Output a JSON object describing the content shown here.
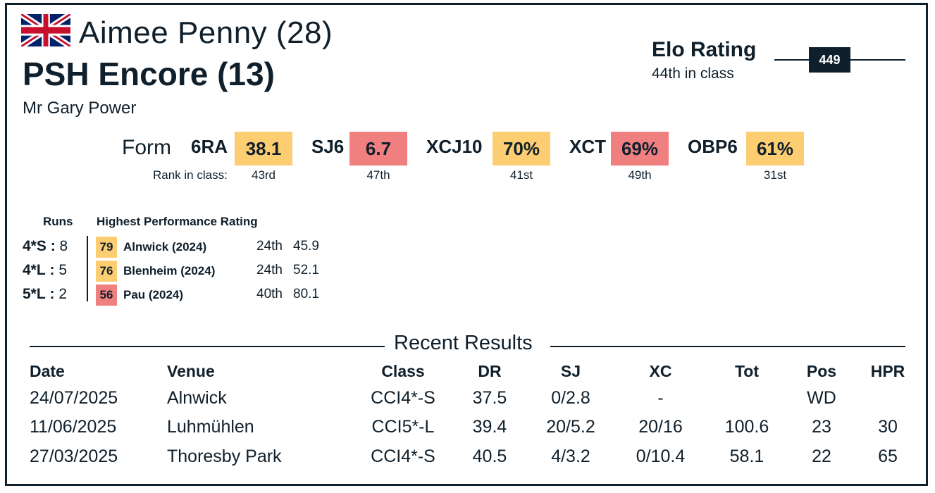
{
  "rider": {
    "name_age": "Aimee Penny (28)",
    "flag": "uk-flag-icon"
  },
  "horse": {
    "name_age": "PSH Encore (13)"
  },
  "owner": "Mr Gary Power",
  "elo": {
    "title": "Elo Rating",
    "class_rank": "44th in class",
    "value": "449"
  },
  "form": {
    "label": "Form",
    "rank_label": "Rank in class:",
    "metrics": [
      {
        "name": "6RA",
        "value": "38.1",
        "rank": "43rd",
        "color": "#fdcd72"
      },
      {
        "name": "SJ6",
        "value": "6.7",
        "rank": "47th",
        "color": "#f08080"
      },
      {
        "name": "XCJ10",
        "value": "70%",
        "rank": "41st",
        "color": "#fdcd72"
      },
      {
        "name": "XCT",
        "value": "69%",
        "rank": "49th",
        "color": "#f08080"
      },
      {
        "name": "OBP6",
        "value": "61%",
        "rank": "31st",
        "color": "#fdcd72"
      }
    ]
  },
  "runs": {
    "header": "Runs",
    "hpr_header": "Highest Performance Rating",
    "rows": [
      {
        "level": "4*S",
        "sep": ":",
        "count": "8",
        "hpr": "79",
        "event": "Alnwick (2024)",
        "rank": "24th",
        "score": "45.9",
        "color": "#fdcd72"
      },
      {
        "level": "4*L",
        "sep": ":",
        "count": "5",
        "hpr": "76",
        "event": "Blenheim (2024)",
        "rank": "24th",
        "score": "52.1",
        "color": "#fdcd72"
      },
      {
        "level": "5*L",
        "sep": ":",
        "count": "2",
        "hpr": "56",
        "event": "Pau (2024)",
        "rank": "40th",
        "score": "80.1",
        "color": "#f08080"
      }
    ]
  },
  "recent": {
    "title": "Recent Results",
    "headers": {
      "date": "Date",
      "venue": "Venue",
      "class": "Class",
      "dr": "DR",
      "sj": "SJ",
      "xc": "XC",
      "tot": "Tot",
      "pos": "Pos",
      "hpr": "HPR"
    },
    "rows": [
      {
        "date": "24/07/2025",
        "venue": "Alnwick",
        "class": "CCI4*-S",
        "dr": "37.5",
        "sj": "0/2.8",
        "xc": "-",
        "tot": "",
        "pos": "WD",
        "hpr": ""
      },
      {
        "date": "11/06/2025",
        "venue": "Luhmühlen",
        "class": "CCI5*-L",
        "dr": "39.4",
        "sj": "20/5.2",
        "xc": "20/16",
        "tot": "100.6",
        "pos": "23",
        "hpr": "30"
      },
      {
        "date": "27/03/2025",
        "venue": "Thoresby Park",
        "class": "CCI4*-S",
        "dr": "40.5",
        "sj": "4/3.2",
        "xc": "0/10.4",
        "tot": "58.1",
        "pos": "22",
        "hpr": "65"
      }
    ]
  }
}
